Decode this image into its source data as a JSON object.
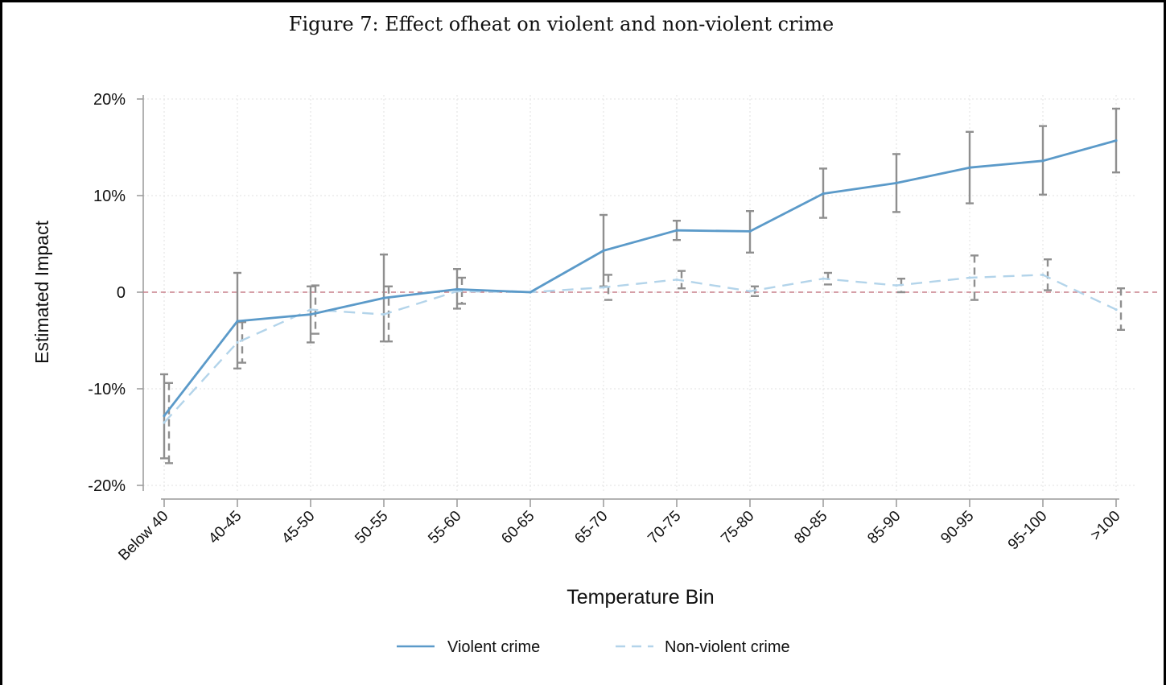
{
  "figure_title": "Figure 7: Effect ofheat on violent and non-violent crime",
  "chart_data": {
    "type": "line",
    "title": "Figure 7: Effect ofheat on violent and non-violent crime",
    "xlabel": "Temperature Bin",
    "ylabel": "Estimated Impact",
    "ylim": [
      -20,
      20
    ],
    "yticks": [
      20,
      10,
      0,
      -10,
      -20
    ],
    "ytick_labels": [
      "20%",
      "10%",
      "0",
      "-10%",
      "-20%"
    ],
    "grid": true,
    "legend_position": "bottom",
    "reference_line": 0,
    "categories": [
      "Below 40",
      "40-45",
      "45-50",
      "50-55",
      "55-60",
      "60-65",
      "65-70",
      "70-75",
      "75-80",
      "80-85",
      "85-90",
      "90-95",
      "95-100",
      ">100"
    ],
    "series": [
      {
        "name": "Violent crime",
        "style": "solid",
        "color": "#5b9ac9",
        "values": [
          -12.8,
          -3.0,
          -2.3,
          -0.6,
          0.3,
          0.0,
          4.3,
          6.4,
          6.3,
          10.2,
          11.3,
          12.9,
          13.6,
          15.7
        ],
        "ci_low": [
          -17.2,
          -7.9,
          -5.2,
          -5.1,
          -1.7,
          0.0,
          0.6,
          5.4,
          4.1,
          7.7,
          8.3,
          9.2,
          10.1,
          12.4
        ],
        "ci_high": [
          -8.5,
          2.0,
          0.6,
          3.9,
          2.4,
          0.0,
          8.0,
          7.4,
          8.4,
          12.8,
          14.3,
          16.6,
          17.2,
          19.0
        ]
      },
      {
        "name": "Non-violent crime",
        "style": "dashed",
        "color": "#b3d4ea",
        "values": [
          -13.5,
          -5.2,
          -1.8,
          -2.3,
          0.1,
          0.0,
          0.5,
          1.3,
          0.1,
          1.4,
          0.7,
          1.5,
          1.8,
          -1.8
        ],
        "ci_low": [
          -17.7,
          -7.3,
          -4.3,
          -5.1,
          -1.2,
          0.0,
          -0.8,
          0.4,
          -0.4,
          0.8,
          0.0,
          -0.8,
          0.2,
          -3.9
        ],
        "ci_high": [
          -9.4,
          -3.1,
          0.7,
          0.6,
          1.5,
          0.0,
          1.8,
          2.2,
          0.6,
          2.0,
          1.4,
          3.8,
          3.4,
          0.4
        ]
      }
    ]
  },
  "colors": {
    "violent_line": "#5b9ac9",
    "nonviolent_line": "#b3d4ea",
    "error_bars": "#8f8f8f",
    "zero_line": "#c9808c",
    "grid": "#e6e6e6"
  }
}
